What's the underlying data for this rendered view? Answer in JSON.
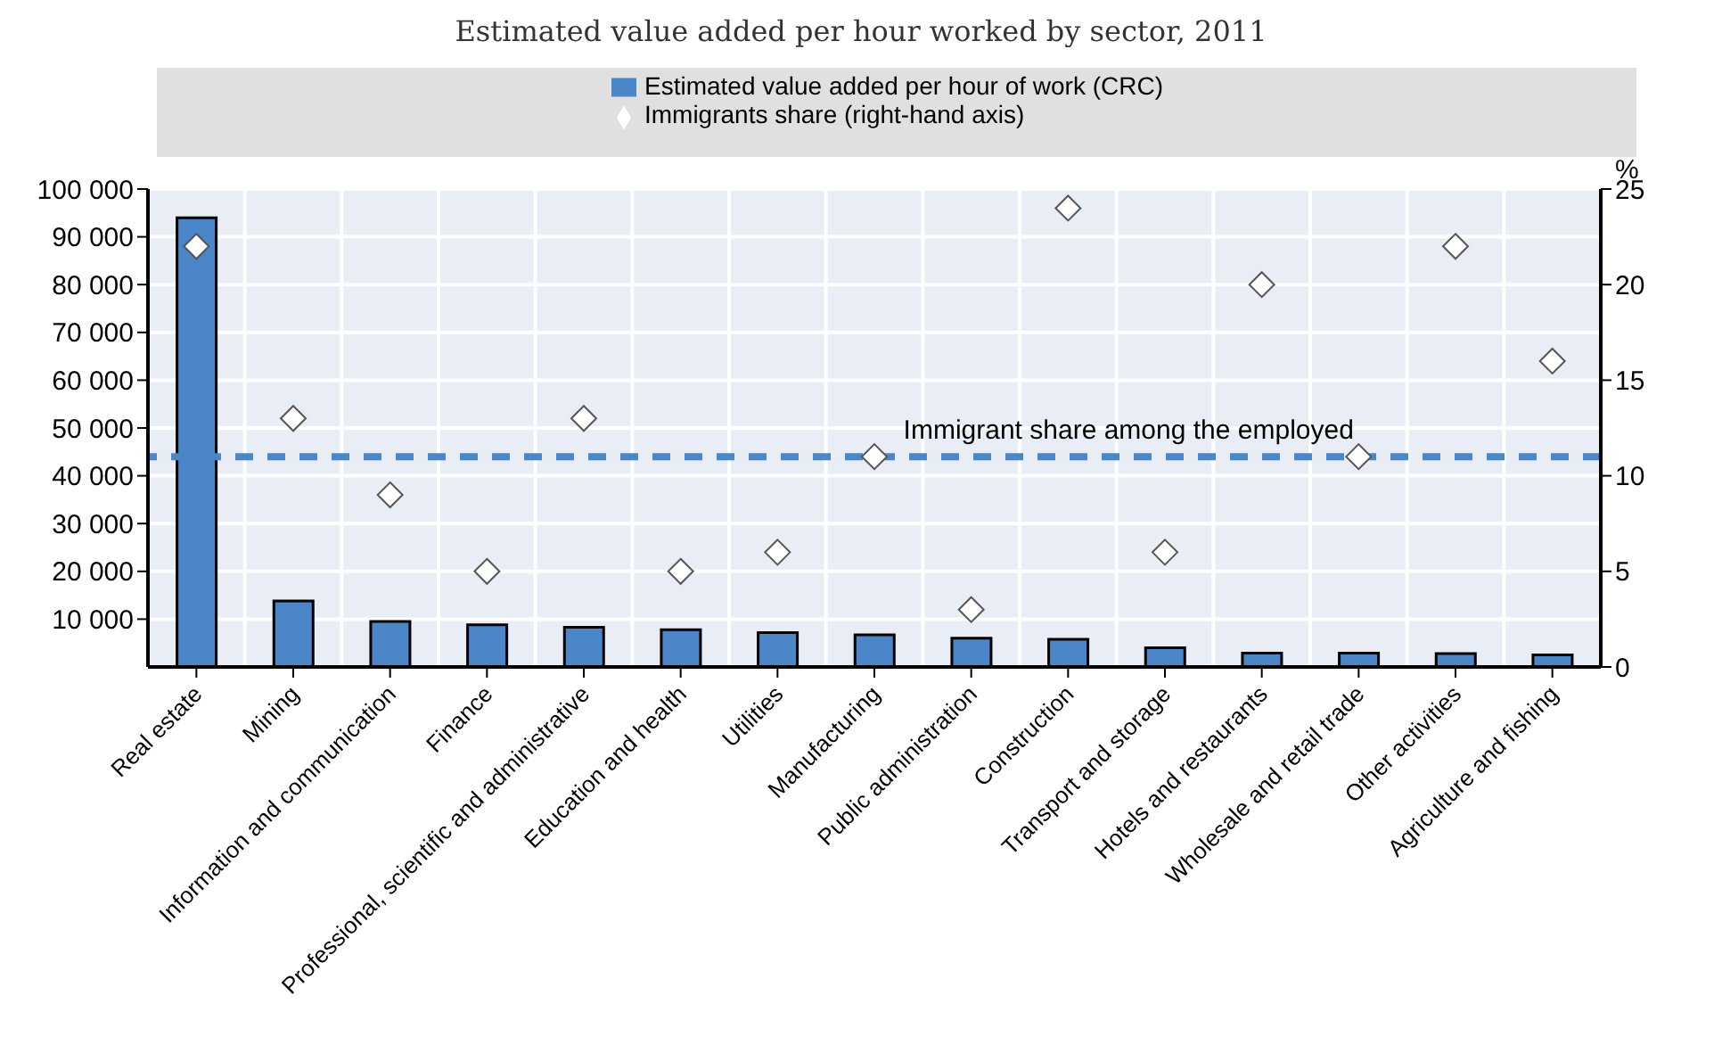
{
  "chart_data": {
    "type": "bar",
    "title": "Estimated value added per hour worked by sector, 2011",
    "y2label": "%",
    "categories": [
      "Real estate",
      "Mining",
      "Information and communication",
      "Finance",
      "Professional, scientific and administrative",
      "Education and health",
      "Utilities",
      "Manufacturing",
      "Public administration",
      "Construction",
      "Transport and storage",
      "Hotels and restaurants",
      "Wholesale and retail trade",
      "Other activities",
      "Agriculture and fishing"
    ],
    "series": [
      {
        "name": "Estimated value added per hour of work (CRC)",
        "color": "#4a86c8",
        "values": [
          94000,
          13800,
          9500,
          8800,
          8300,
          7800,
          7200,
          6700,
          6000,
          5800,
          4000,
          2900,
          2900,
          2800,
          2500
        ]
      },
      {
        "name": "Immigrants share (right-hand axis)",
        "type": "scatter",
        "axis": "y2",
        "color": "#ffffff",
        "marker": "diamond",
        "values": [
          22,
          13,
          9,
          5,
          13,
          5,
          6,
          11,
          3,
          24,
          6,
          20,
          11,
          22,
          16
        ]
      }
    ],
    "ylim": [
      0,
      100000
    ],
    "yticks": [
      {
        "value": 10000,
        "label": "10 000"
      },
      {
        "value": 20000,
        "label": "20 000"
      },
      {
        "value": 30000,
        "label": "30 000"
      },
      {
        "value": 40000,
        "label": "40 000"
      },
      {
        "value": 50000,
        "label": "50 000"
      },
      {
        "value": 60000,
        "label": "60 000"
      },
      {
        "value": 70000,
        "label": "70 000"
      },
      {
        "value": 80000,
        "label": "80 000"
      },
      {
        "value": 90000,
        "label": "90 000"
      },
      {
        "value": 100000,
        "label": "100 000"
      }
    ],
    "y2lim": [
      0,
      25
    ],
    "y2ticks": [
      0,
      5,
      10,
      15,
      20,
      25
    ],
    "ref_lines": [
      {
        "axis": "y2",
        "value": 11,
        "label": "Immigrant share among the employed",
        "color": "#4a86c8",
        "line_style": "dashed"
      }
    ],
    "grid": true,
    "legend": "top"
  }
}
